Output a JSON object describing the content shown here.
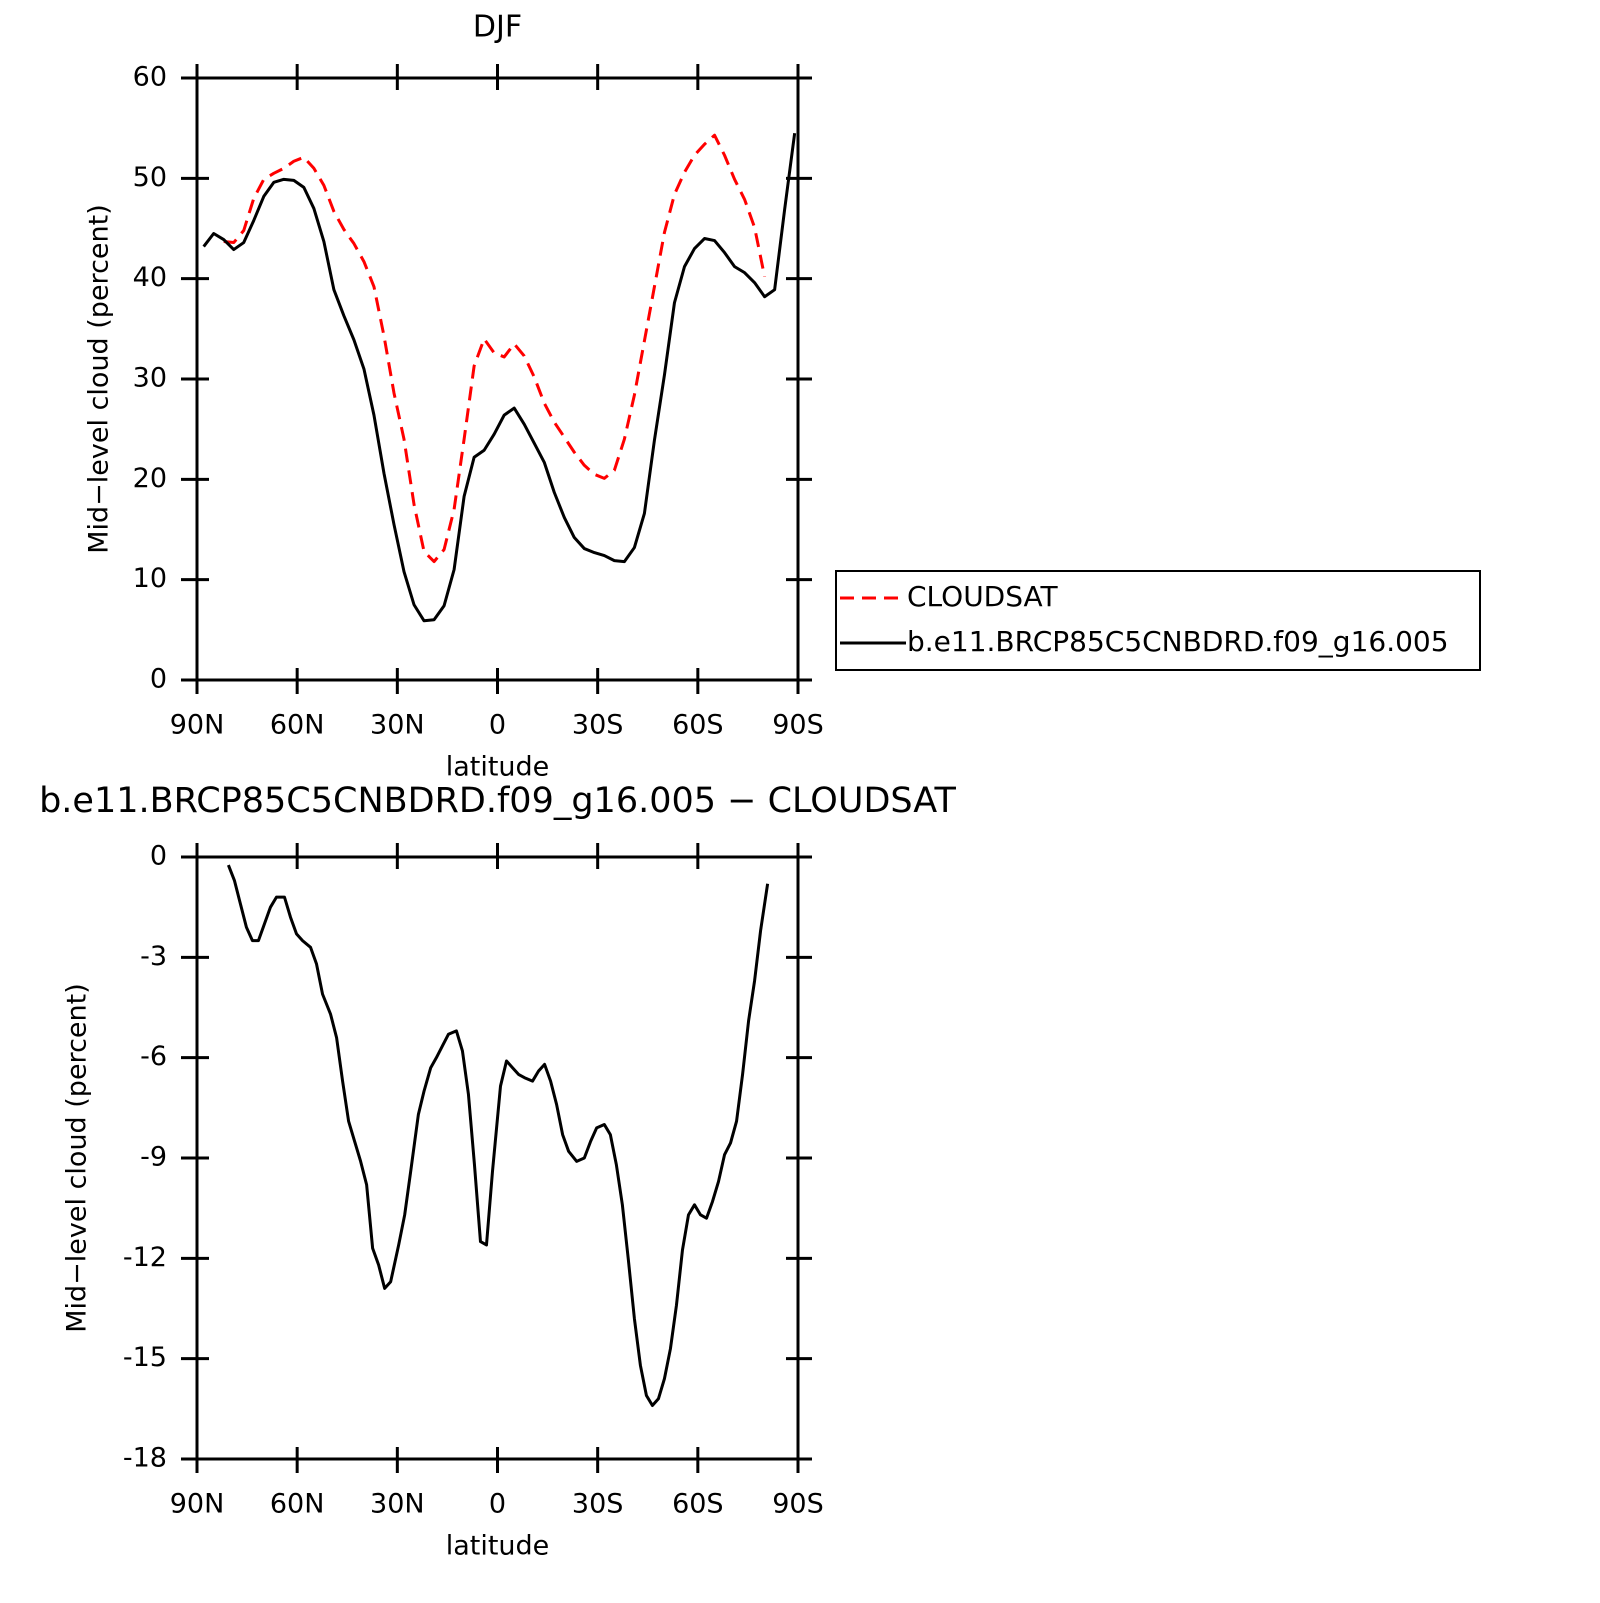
{
  "chart_data": [
    {
      "type": "line",
      "title": "DJF",
      "xlabel": "latitude",
      "ylabel": "Mid−level cloud (percent)",
      "x": [
        88,
        85,
        82,
        79,
        76,
        73,
        70,
        67,
        64,
        61,
        58,
        55,
        52,
        49,
        46,
        43,
        40,
        37,
        34,
        31,
        28,
        25,
        22,
        19,
        16,
        13,
        10,
        7,
        4,
        1,
        -2,
        -5,
        -8,
        -11,
        -14,
        -17,
        -20,
        -23,
        -26,
        -29,
        -32,
        -35,
        -38,
        -41,
        -44,
        -47,
        -50,
        -53,
        -56,
        -59,
        -62,
        -65,
        -68,
        -71,
        -74,
        -77,
        -80,
        -83,
        -86,
        -89
      ],
      "series": [
        {
          "name": "CLOUDSAT",
          "color": "#ff0000",
          "dashed": true,
          "values": [
            null,
            null,
            43.7,
            43.6,
            44.8,
            48.0,
            49.9,
            50.5,
            51.0,
            51.7,
            52.1,
            51.0,
            49.3,
            46.7,
            44.9,
            43.5,
            41.7,
            39.2,
            34.3,
            28.6,
            24.0,
            17.5,
            12.8,
            11.8,
            13.0,
            17.0,
            24.0,
            31.3,
            34.0,
            32.6,
            32.2,
            33.5,
            32.3,
            30.2,
            27.6,
            25.7,
            24.2,
            22.7,
            21.4,
            20.5,
            20.1,
            20.9,
            24.0,
            28.4,
            33.8,
            39.2,
            44.6,
            48.4,
            50.6,
            52.3,
            53.4,
            54.3,
            52.3,
            49.9,
            47.9,
            45.1,
            40.2,
            null,
            null,
            null
          ]
        },
        {
          "name": "b.e11.BRCP85C5CNBDRD.f09_g16.005",
          "color": "#000000",
          "dashed": false,
          "values": [
            43.2,
            44.5,
            43.9,
            42.9,
            43.6,
            45.8,
            48.2,
            49.6,
            49.9,
            49.8,
            49.1,
            47.0,
            43.7,
            38.9,
            36.3,
            33.9,
            31.0,
            26.4,
            20.6,
            15.5,
            10.8,
            7.5,
            5.9,
            6.0,
            7.4,
            11.0,
            18.3,
            22.2,
            22.9,
            24.5,
            26.4,
            27.1,
            25.5,
            23.6,
            21.7,
            18.7,
            16.2,
            14.2,
            13.1,
            12.7,
            12.4,
            11.9,
            11.8,
            13.2,
            16.6,
            23.9,
            30.4,
            37.6,
            41.2,
            43.0,
            44.0,
            43.8,
            42.6,
            41.2,
            40.6,
            39.6,
            38.2,
            38.9,
            46.9,
            54.5
          ]
        }
      ],
      "xlim": [
        90,
        -90
      ],
      "xticks": [
        {
          "value": 90,
          "label": "90N"
        },
        {
          "value": 60,
          "label": "60N"
        },
        {
          "value": 30,
          "label": "30N"
        },
        0,
        {
          "value": -30,
          "label": "30S"
        },
        {
          "value": -60,
          "label": "60S"
        },
        {
          "value": -90,
          "label": "90S"
        }
      ],
      "ylim": [
        0,
        60
      ],
      "yticks": [
        0,
        10,
        20,
        30,
        40,
        50,
        60
      ],
      "legend": "right"
    },
    {
      "type": "line",
      "title": "b.e11.BRCP85C5CNBDRD.f09_g16.005 − CLOUDSAT",
      "xlabel": "latitude",
      "ylabel": "Mid−level cloud (percent)",
      "x": [
        80.6,
        78.8,
        77,
        75.2,
        73.4,
        71.6,
        69.8,
        68,
        66.2,
        63.8,
        62,
        60.2,
        58.4,
        56,
        54.2,
        52.4,
        50,
        48.2,
        46.4,
        44.6,
        42.8,
        41,
        39.2,
        37.4,
        35.6,
        33.8,
        32,
        29.6,
        27.8,
        26,
        23.7,
        22,
        20,
        18.3,
        16.5,
        14.7,
        12.3,
        10.5,
        8.7,
        6.9,
        5.1,
        3.3,
        1.5,
        -0.9,
        -2.7,
        -4.5,
        -6.3,
        -8.1,
        -10.5,
        -12.3,
        -14.1,
        -15.9,
        -17.7,
        -19.5,
        -21.3,
        -23.7,
        -26,
        -27.9,
        -29.7,
        -32,
        -33.8,
        -35.6,
        -37.4,
        -39.2,
        -41,
        -42.8,
        -44.6,
        -46.4,
        -48.2,
        -50,
        -51.8,
        -53.6,
        -55.4,
        -57.2,
        -59,
        -60.8,
        -62.6,
        -64.4,
        -66.2,
        -68,
        -69.8,
        -71.6,
        -73.4,
        -75.2,
        -77,
        -78.8,
        -80.9
      ],
      "values": [
        -0.24,
        -0.7,
        -1.4,
        -2.1,
        -2.5,
        -2.5,
        -2.0,
        -1.5,
        -1.2,
        -1.2,
        -1.8,
        -2.3,
        -2.5,
        -2.7,
        -3.2,
        -4.1,
        -4.7,
        -5.4,
        -6.7,
        -7.9,
        -8.5,
        -9.1,
        -9.8,
        -11.7,
        -12.2,
        -12.9,
        -12.7,
        -11.6,
        -10.7,
        -9.4,
        -7.7,
        -7.0,
        -6.3,
        -6.0,
        -5.65,
        -5.3,
        -5.2,
        -5.8,
        -7.1,
        -9.2,
        -11.5,
        -11.6,
        -9.4,
        -6.85,
        -6.1,
        -6.3,
        -6.5,
        -6.6,
        -6.7,
        -6.4,
        -6.2,
        -6.7,
        -7.4,
        -8.3,
        -8.8,
        -9.1,
        -9.0,
        -8.5,
        -8.1,
        -8.0,
        -8.3,
        -9.2,
        -10.4,
        -12.05,
        -13.8,
        -15.2,
        -16.1,
        -16.4,
        -16.2,
        -15.6,
        -14.7,
        -13.4,
        -11.75,
        -10.7,
        -10.4,
        -10.7,
        -10.8,
        -10.3,
        -9.7,
        -8.9,
        -8.55,
        -7.9,
        -6.5,
        -4.9,
        -3.7,
        -2.2,
        -0.8
      ],
      "color": "#000000",
      "xlim": [
        90,
        -90
      ],
      "xticks": [
        {
          "value": 90,
          "label": "90N"
        },
        {
          "value": 60,
          "label": "60N"
        },
        {
          "value": 30,
          "label": "30N"
        },
        0,
        {
          "value": -30,
          "label": "30S"
        },
        {
          "value": -60,
          "label": "60S"
        },
        {
          "value": -90,
          "label": "90S"
        }
      ],
      "ylim": [
        -18,
        0
      ],
      "yticks": [
        -18,
        -15,
        -12,
        -9,
        -6,
        -3,
        0
      ]
    }
  ]
}
